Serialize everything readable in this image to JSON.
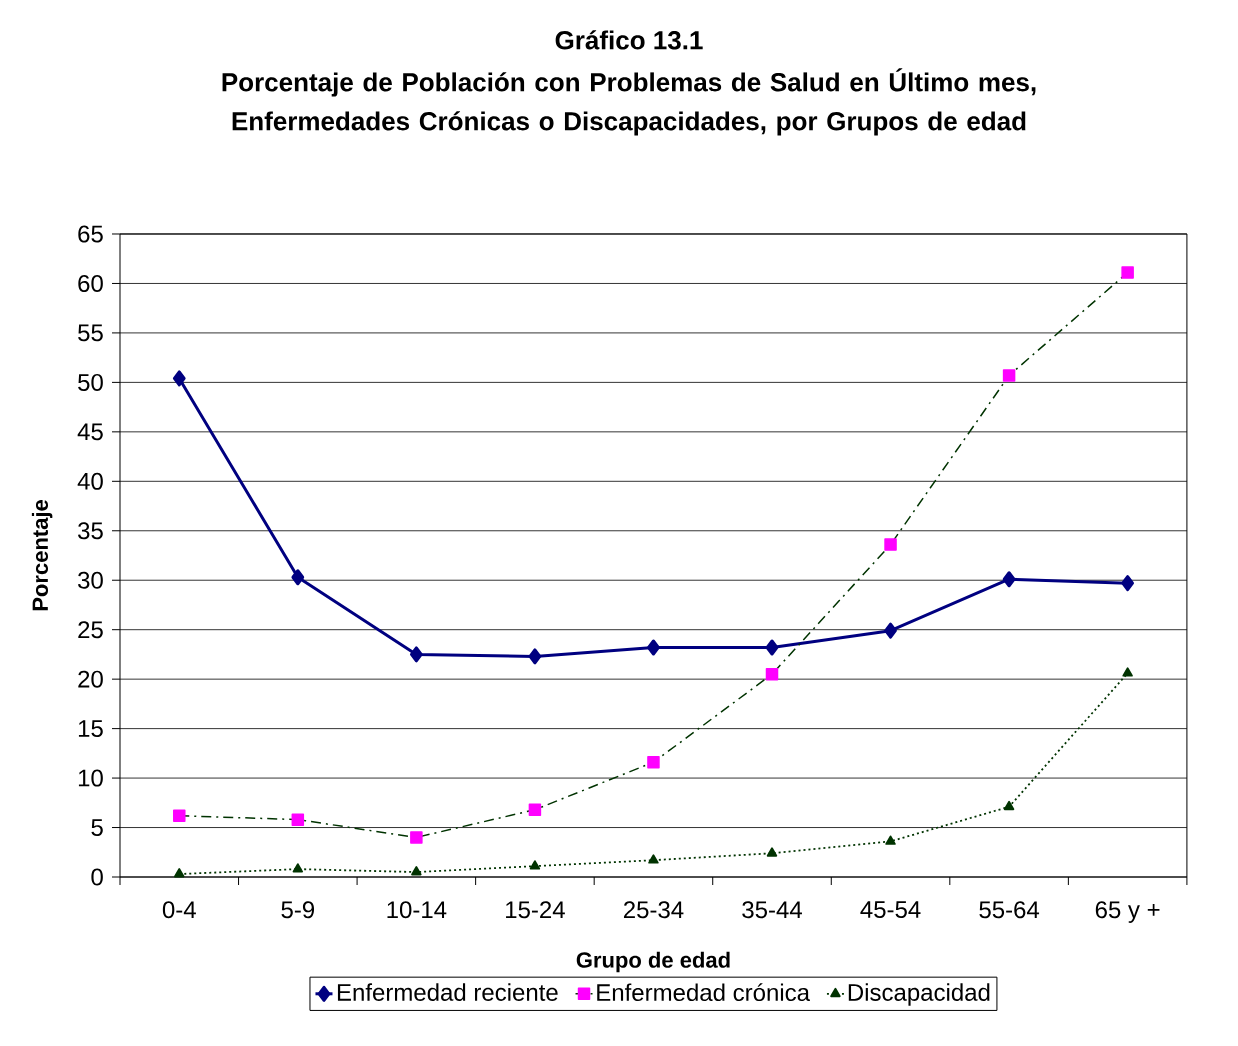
{
  "chart_data": {
    "type": "line",
    "title": "Gráfico 13.1",
    "subtitle": "Porcentaje de Población con Problemas de Salud en Último mes, Enfermedades Crónicas o Discapacidades, por Grupos de edad",
    "xlabel": "Grupo de edad",
    "ylabel": "Porcentaje",
    "categories": [
      "0-4",
      "5-9",
      "10-14",
      "15-24",
      "25-34",
      "35-44",
      "45-54",
      "55-64",
      "65 y +"
    ],
    "series": [
      {
        "name": "Enfermedad reciente",
        "color": "#000080",
        "marker": "diamond",
        "line_style": "solid",
        "values": [
          50.4,
          30.3,
          22.5,
          22.3,
          23.2,
          23.2,
          24.9,
          30.1,
          29.7
        ]
      },
      {
        "name": "Enfermedad crónica",
        "color": "#ff00ff",
        "marker": "square",
        "line_style": "dashed",
        "values": [
          6.2,
          5.8,
          4.0,
          6.8,
          11.6,
          20.5,
          33.6,
          50.7,
          61.1
        ]
      },
      {
        "name": "Discapacidad",
        "color": "#003300",
        "marker": "triangle",
        "line_style": "dotted",
        "values": [
          0.3,
          0.8,
          0.5,
          1.1,
          1.7,
          2.4,
          3.6,
          7.1,
          20.6
        ]
      }
    ],
    "ylim": [
      0,
      65
    ],
    "yticks": [
      0,
      5,
      10,
      15,
      20,
      25,
      30,
      35,
      40,
      45,
      50,
      55,
      60,
      65
    ],
    "grid": "y",
    "legend": "bottom"
  }
}
